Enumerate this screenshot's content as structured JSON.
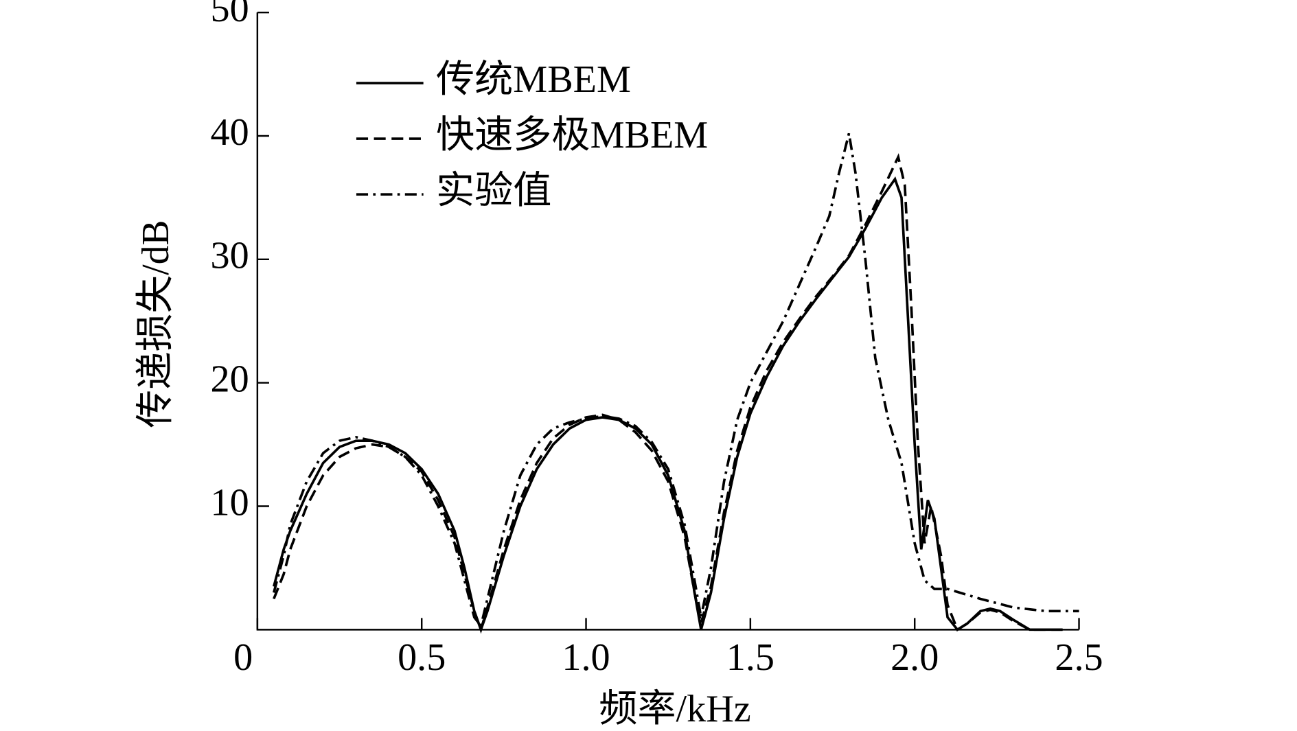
{
  "chart_data": {
    "type": "line",
    "x_label": "频率/kHz",
    "y_label": "传递损失/dB",
    "xlim": [
      0,
      2.5
    ],
    "ylim": [
      0,
      50
    ],
    "xticks": [
      0,
      0.5,
      {
        "value": 1,
        "label": "1.0"
      },
      1.5,
      {
        "value": 2,
        "label": "2.0"
      },
      2.5
    ],
    "yticks": [
      10,
      20,
      30,
      40,
      50
    ],
    "grid": false,
    "series": [
      {
        "name": "传统MBEM",
        "color": "#000000",
        "dash": "solid",
        "x": [
          0.05,
          0.08,
          0.1,
          0.15,
          0.2,
          0.25,
          0.3,
          0.35,
          0.4,
          0.45,
          0.5,
          0.55,
          0.6,
          0.63,
          0.66,
          0.68,
          0.7,
          0.75,
          0.8,
          0.85,
          0.9,
          0.95,
          1.0,
          1.05,
          1.1,
          1.15,
          1.2,
          1.25,
          1.3,
          1.33,
          1.35,
          1.38,
          1.42,
          1.46,
          1.5,
          1.55,
          1.6,
          1.65,
          1.7,
          1.75,
          1.8,
          1.85,
          1.9,
          1.94,
          1.96,
          1.98,
          2.0,
          2.02,
          2.04,
          2.06,
          2.08,
          2.1,
          2.13,
          2.16,
          2.2,
          2.23,
          2.26,
          2.3,
          2.35,
          2.45
        ],
        "values": [
          3.5,
          6.5,
          8,
          11,
          13.5,
          14.8,
          15.3,
          15.3,
          15,
          14.3,
          13,
          11,
          8,
          5,
          1.5,
          0,
          1.5,
          6,
          10,
          13,
          15,
          16.3,
          17,
          17.2,
          17,
          16.3,
          15,
          12.5,
          8,
          3,
          0,
          3,
          9,
          14,
          17.5,
          20.5,
          23,
          25,
          26.8,
          28.5,
          30.2,
          32.5,
          35,
          36.5,
          35,
          25,
          15,
          6.5,
          10.5,
          9,
          5,
          1,
          0,
          0.5,
          1.5,
          1.7,
          1.5,
          0.8,
          0,
          0
        ]
      },
      {
        "name": "快速多极MBEM",
        "color": "#000000",
        "dash": "dashed",
        "x": [
          0.05,
          0.08,
          0.1,
          0.15,
          0.2,
          0.25,
          0.3,
          0.35,
          0.4,
          0.45,
          0.5,
          0.55,
          0.6,
          0.63,
          0.66,
          0.68,
          0.7,
          0.75,
          0.8,
          0.85,
          0.9,
          0.95,
          1.0,
          1.05,
          1.1,
          1.15,
          1.2,
          1.25,
          1.3,
          1.33,
          1.35,
          1.38,
          1.42,
          1.46,
          1.5,
          1.55,
          1.6,
          1.65,
          1.7,
          1.75,
          1.8,
          1.85,
          1.9,
          1.95,
          1.97,
          1.99,
          2.01,
          2.03,
          2.05,
          2.08,
          2.1,
          2.13,
          2.16,
          2.2,
          2.23,
          2.26,
          2.3,
          2.35,
          2.45
        ],
        "values": [
          2.5,
          4.5,
          6.5,
          10,
          12.5,
          14,
          14.7,
          15,
          14.8,
          14,
          12.8,
          10.5,
          7.5,
          4.5,
          1.5,
          0,
          1.8,
          6.5,
          10.5,
          13.5,
          15.5,
          16.6,
          17.2,
          17.4,
          17,
          16,
          14.5,
          12,
          7.5,
          3,
          0.5,
          3.5,
          9.5,
          14.5,
          18,
          21,
          23.3,
          25.2,
          27,
          28.6,
          30.3,
          32.8,
          35.5,
          38.3,
          36,
          26,
          15,
          7,
          10,
          6,
          2,
          0,
          0.5,
          1.4,
          1.6,
          1.4,
          0.7,
          0,
          0
        ]
      },
      {
        "name": "实验值",
        "color": "#000000",
        "dash": "dashdot",
        "x": [
          0.05,
          0.08,
          0.1,
          0.15,
          0.2,
          0.25,
          0.3,
          0.35,
          0.4,
          0.45,
          0.5,
          0.55,
          0.6,
          0.63,
          0.66,
          0.68,
          0.7,
          0.75,
          0.8,
          0.85,
          0.9,
          0.95,
          1.0,
          1.05,
          1.1,
          1.15,
          1.2,
          1.25,
          1.3,
          1.33,
          1.35,
          1.38,
          1.42,
          1.46,
          1.5,
          1.55,
          1.6,
          1.65,
          1.7,
          1.74,
          1.77,
          1.8,
          1.82,
          1.85,
          1.88,
          1.92,
          1.96,
          2.0,
          2.03,
          2.06,
          2.1,
          2.2,
          2.3,
          2.4,
          2.5
        ],
        "values": [
          3,
          6,
          8.5,
          12,
          14.3,
          15.3,
          15.6,
          15.3,
          14.8,
          14,
          12.5,
          10,
          7,
          4,
          1,
          0.3,
          2.5,
          8,
          12.5,
          15,
          16.3,
          16.8,
          17.1,
          17.3,
          17.1,
          16.5,
          15.2,
          13,
          8.5,
          4,
          1,
          5,
          12,
          17,
          20,
          22.5,
          25,
          28,
          31,
          33.5,
          37,
          40.2,
          37,
          30,
          22,
          17,
          13.5,
          7,
          4,
          3.3,
          3.3,
          2.5,
          1.8,
          1.5,
          1.5
        ]
      }
    ]
  }
}
